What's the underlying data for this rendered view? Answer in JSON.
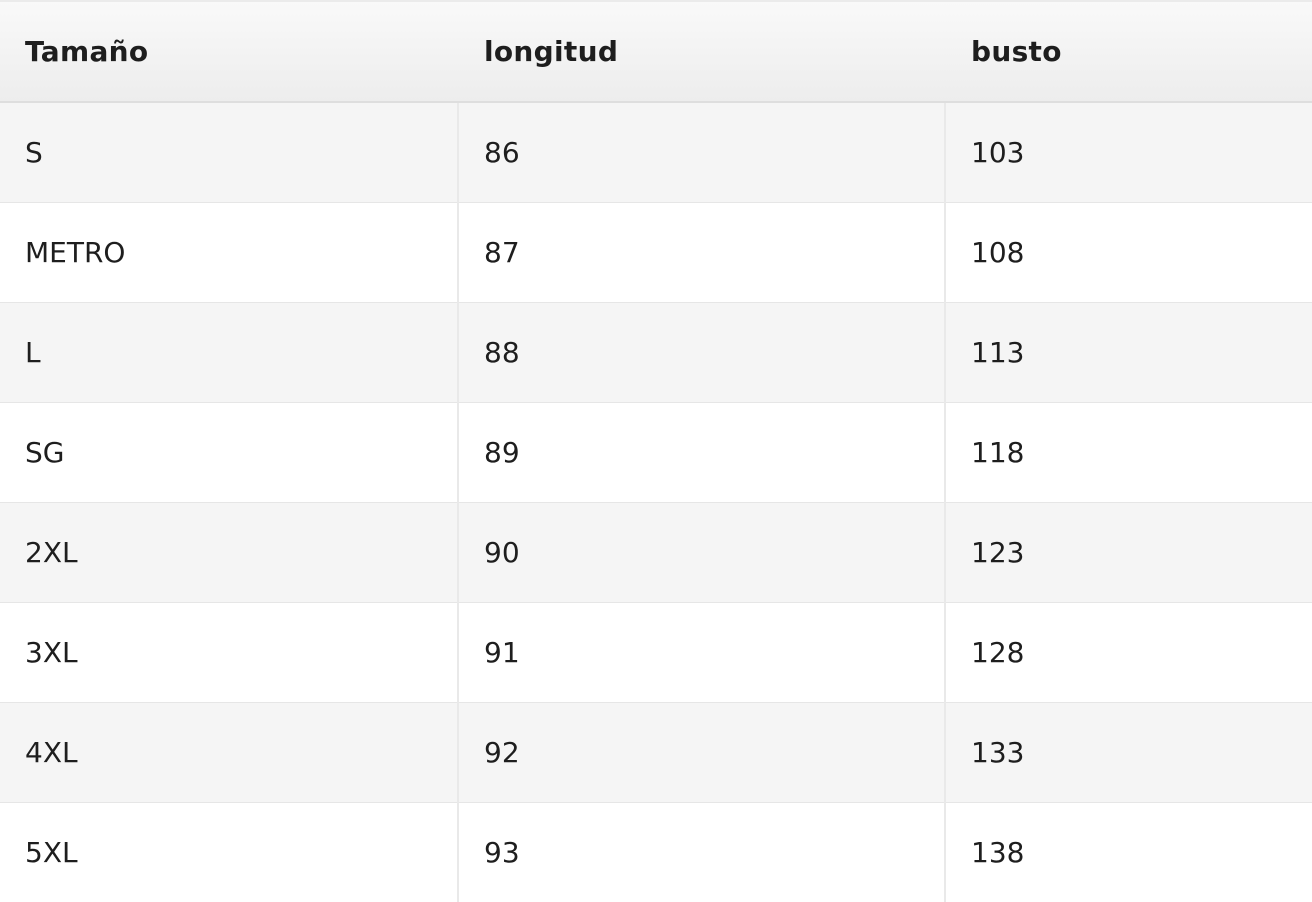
{
  "table": {
    "header": [
      "Tamaño",
      "longitud",
      "busto"
    ],
    "rows": [
      [
        "S",
        86,
        103
      ],
      [
        "METRO",
        87,
        108
      ],
      [
        "L",
        88,
        113
      ],
      [
        "SG",
        89,
        118
      ],
      [
        "2XL",
        90,
        123
      ],
      [
        "3XL",
        91,
        128
      ],
      [
        "4XL",
        92,
        133
      ],
      [
        "5XL",
        93,
        138
      ]
    ]
  }
}
